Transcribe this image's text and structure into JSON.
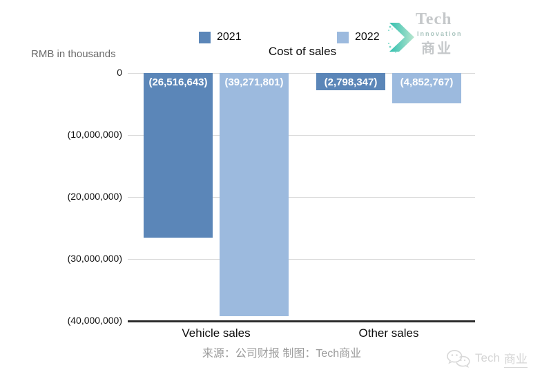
{
  "header": {
    "unit_label": "RMB in thousands",
    "title": "Cost of sales"
  },
  "legend": [
    {
      "label": "2021",
      "color": "#5b86b8"
    },
    {
      "label": "2022",
      "color": "#9cbade"
    }
  ],
  "chart_data": {
    "type": "bar",
    "title": "Cost of sales",
    "unit": "RMB in thousands",
    "categories": [
      "Vehicle sales",
      "Other sales"
    ],
    "series": [
      {
        "name": "2021",
        "color": "#5b86b8",
        "values": [
          -26516643,
          -2798347
        ],
        "labels": [
          "(26,516,643)",
          "(2,798,347)"
        ]
      },
      {
        "name": "2022",
        "color": "#9cbade",
        "values": [
          -39271801,
          -4852767
        ],
        "labels": [
          "(39,271,801)",
          "(4,852,767)"
        ]
      }
    ],
    "ylim": [
      -40000000,
      0
    ],
    "yticks": [
      "0",
      "(10,000,000)",
      "(20,000,000)",
      "(30,000,000)",
      "(40,000,000)"
    ],
    "grid": true,
    "legend_position": "top"
  },
  "footer": {
    "source": "来源：公司财报 制图：Tech商业"
  },
  "logo": {
    "name": "Tech",
    "sub": "Innovation",
    "cn": "商业",
    "accent": "#2fbfae",
    "accent_light": "#b9e6cf"
  },
  "watermark": {
    "en": "Tech",
    "cn": "商业"
  }
}
